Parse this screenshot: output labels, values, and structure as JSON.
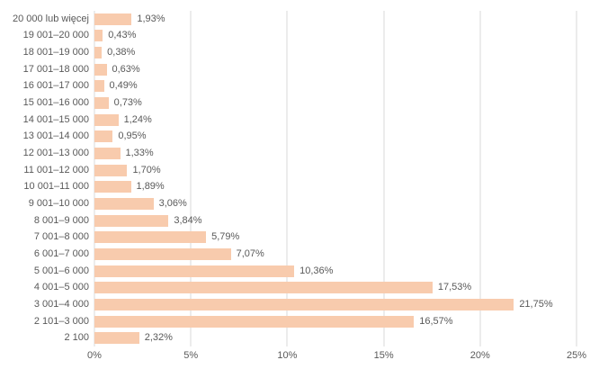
{
  "chart_data": {
    "type": "bar",
    "orientation": "horizontal",
    "title": "",
    "xlabel": "",
    "ylabel": "",
    "xlim": [
      0,
      25
    ],
    "x_ticks": [
      0,
      5,
      10,
      15,
      20,
      25
    ],
    "x_tick_labels": [
      "0%",
      "5%",
      "10%",
      "15%",
      "20%",
      "25%"
    ],
    "grid": true,
    "legend": "none",
    "categories": [
      "20 000 lub więcej",
      "19 001–20 000",
      "18 001–19 000",
      "17 001–18 000",
      "16 001–17 000",
      "15 001–16 000",
      "14 001–15 000",
      "13 001–14 000",
      "12 001–13 000",
      "11 001–12 000",
      "10 001–11 000",
      "9 001–10 000",
      "8 001–9 000",
      "7 001–8 000",
      "6 001–7 000",
      "5 001–6 000",
      "4 001–5 000",
      "3 001–4 000",
      "2 101–3 000",
      "2 100"
    ],
    "values": [
      1.93,
      0.43,
      0.38,
      0.63,
      0.49,
      0.73,
      1.24,
      0.95,
      1.33,
      1.7,
      1.89,
      3.06,
      3.84,
      5.79,
      7.07,
      10.36,
      17.53,
      21.75,
      16.57,
      2.32
    ],
    "value_labels": [
      "1,93%",
      "0,43%",
      "0,38%",
      "0,63%",
      "0,49%",
      "0,73%",
      "1,24%",
      "0,95%",
      "1,33%",
      "1,70%",
      "1,89%",
      "3,06%",
      "3,84%",
      "5,79%",
      "7,07%",
      "10,36%",
      "17,53%",
      "21,75%",
      "16,57%",
      "2,32%"
    ],
    "colors": {
      "bar": "#F8CBAD",
      "gridline": "#D9D9D9",
      "text": "#595959",
      "background": "#FFFFFF"
    }
  }
}
